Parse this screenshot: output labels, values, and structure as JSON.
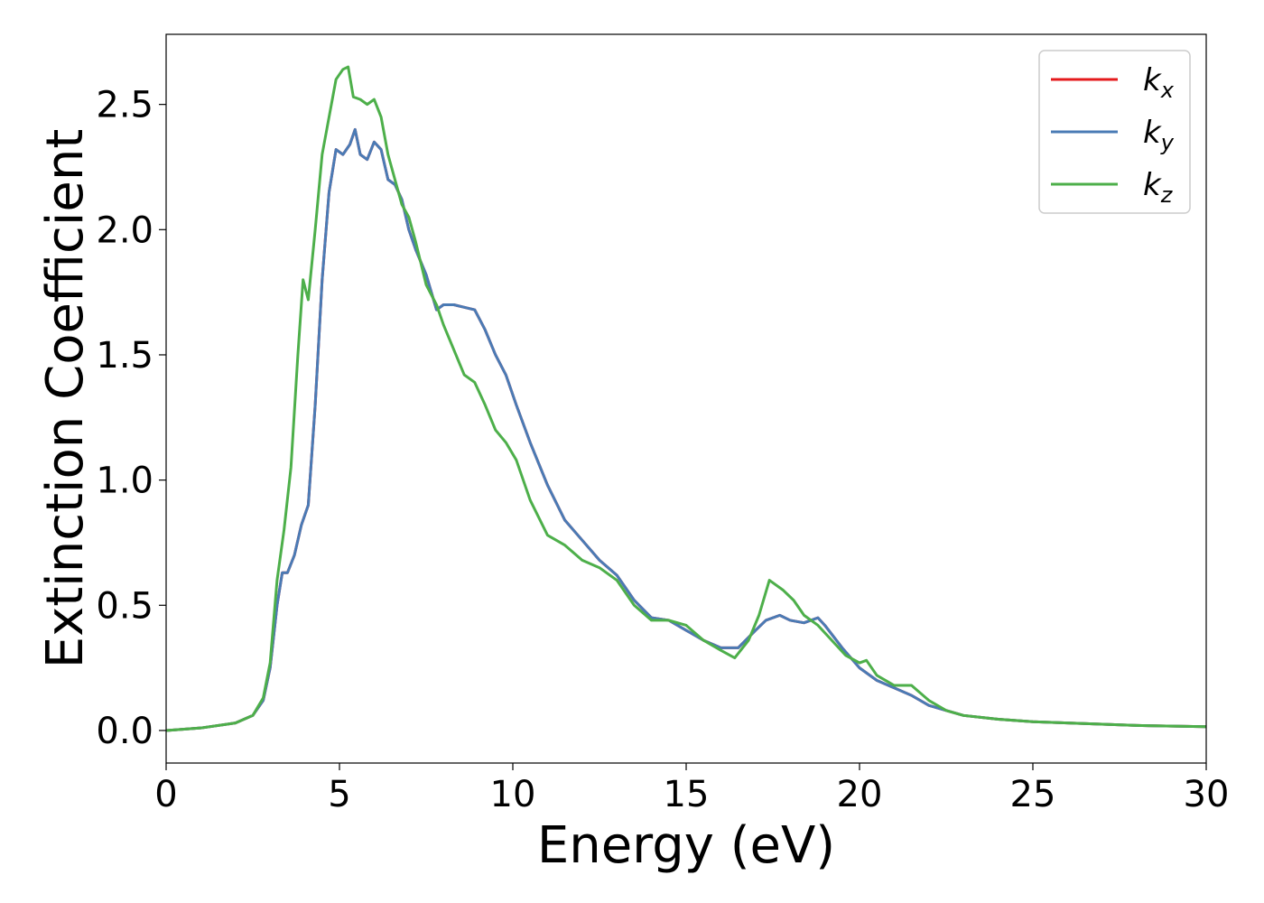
{
  "chart_data": {
    "type": "line",
    "xlabel": "Energy (eV)",
    "ylabel": "Extinction Coefficient",
    "xlim": [
      0,
      30
    ],
    "ylim": [
      -0.13,
      2.78
    ],
    "xticks": [
      0,
      5,
      10,
      15,
      20,
      25,
      30
    ],
    "yticks": [
      0.0,
      0.5,
      1.0,
      1.5,
      2.0,
      2.5
    ],
    "grid": false,
    "legend_position": "top-right",
    "series": [
      {
        "name": "k",
        "subscript": "x",
        "color": "#e41a1c",
        "x": [
          0,
          1,
          2,
          2.5,
          2.8,
          3.0,
          3.2,
          3.35,
          3.5,
          3.7,
          3.9,
          4.1,
          4.3,
          4.5,
          4.7,
          4.9,
          5.1,
          5.3,
          5.45,
          5.6,
          5.8,
          6.0,
          6.2,
          6.4,
          6.6,
          6.8,
          7.0,
          7.2,
          7.5,
          7.8,
          8.0,
          8.3,
          8.6,
          8.9,
          9.2,
          9.5,
          9.8,
          10.1,
          10.5,
          11.0,
          11.5,
          12.0,
          12.5,
          13.0,
          13.5,
          14.0,
          14.5,
          15.0,
          15.5,
          16.0,
          16.5,
          17.0,
          17.3,
          17.7,
          18.0,
          18.4,
          18.8,
          19.0,
          19.5,
          20.0,
          20.5,
          21.0,
          21.5,
          22.0,
          22.5,
          23.0,
          24.0,
          25.0,
          26.0,
          27.0,
          28.0,
          30.0
        ],
        "y": [
          0.0,
          0.01,
          0.03,
          0.06,
          0.12,
          0.25,
          0.5,
          0.63,
          0.63,
          0.7,
          0.82,
          0.9,
          1.3,
          1.8,
          2.15,
          2.32,
          2.3,
          2.34,
          2.4,
          2.3,
          2.28,
          2.35,
          2.32,
          2.2,
          2.18,
          2.12,
          2.0,
          1.92,
          1.82,
          1.68,
          1.7,
          1.7,
          1.69,
          1.68,
          1.6,
          1.5,
          1.42,
          1.3,
          1.15,
          0.98,
          0.84,
          0.76,
          0.68,
          0.62,
          0.52,
          0.45,
          0.44,
          0.4,
          0.36,
          0.33,
          0.33,
          0.4,
          0.44,
          0.46,
          0.44,
          0.43,
          0.45,
          0.42,
          0.33,
          0.25,
          0.2,
          0.17,
          0.14,
          0.1,
          0.08,
          0.06,
          0.045,
          0.035,
          0.03,
          0.025,
          0.02,
          0.015
        ]
      },
      {
        "name": "k",
        "subscript": "y",
        "color": "#4a7bb5",
        "x": [
          0,
          1,
          2,
          2.5,
          2.8,
          3.0,
          3.2,
          3.35,
          3.5,
          3.7,
          3.9,
          4.1,
          4.3,
          4.5,
          4.7,
          4.9,
          5.1,
          5.3,
          5.45,
          5.6,
          5.8,
          6.0,
          6.2,
          6.4,
          6.6,
          6.8,
          7.0,
          7.2,
          7.5,
          7.8,
          8.0,
          8.3,
          8.6,
          8.9,
          9.2,
          9.5,
          9.8,
          10.1,
          10.5,
          11.0,
          11.5,
          12.0,
          12.5,
          13.0,
          13.5,
          14.0,
          14.5,
          15.0,
          15.5,
          16.0,
          16.5,
          17.0,
          17.3,
          17.7,
          18.0,
          18.4,
          18.8,
          19.0,
          19.5,
          20.0,
          20.5,
          21.0,
          21.5,
          22.0,
          22.5,
          23.0,
          24.0,
          25.0,
          26.0,
          27.0,
          28.0,
          30.0
        ],
        "y": [
          0.0,
          0.01,
          0.03,
          0.06,
          0.12,
          0.25,
          0.5,
          0.63,
          0.63,
          0.7,
          0.82,
          0.9,
          1.3,
          1.8,
          2.15,
          2.32,
          2.3,
          2.34,
          2.4,
          2.3,
          2.28,
          2.35,
          2.32,
          2.2,
          2.18,
          2.12,
          2.0,
          1.92,
          1.82,
          1.68,
          1.7,
          1.7,
          1.69,
          1.68,
          1.6,
          1.5,
          1.42,
          1.3,
          1.15,
          0.98,
          0.84,
          0.76,
          0.68,
          0.62,
          0.52,
          0.45,
          0.44,
          0.4,
          0.36,
          0.33,
          0.33,
          0.4,
          0.44,
          0.46,
          0.44,
          0.43,
          0.45,
          0.42,
          0.33,
          0.25,
          0.2,
          0.17,
          0.14,
          0.1,
          0.08,
          0.06,
          0.045,
          0.035,
          0.03,
          0.025,
          0.02,
          0.015
        ]
      },
      {
        "name": "k",
        "subscript": "z",
        "color": "#4daf4a",
        "x": [
          0,
          1,
          2,
          2.5,
          2.8,
          3.0,
          3.2,
          3.4,
          3.6,
          3.8,
          3.95,
          4.1,
          4.3,
          4.5,
          4.7,
          4.9,
          5.1,
          5.25,
          5.4,
          5.6,
          5.8,
          6.0,
          6.2,
          6.4,
          6.6,
          6.8,
          7.0,
          7.2,
          7.5,
          7.8,
          8.0,
          8.3,
          8.6,
          8.9,
          9.2,
          9.5,
          9.8,
          10.1,
          10.5,
          11.0,
          11.5,
          12.0,
          12.5,
          13.0,
          13.5,
          14.0,
          14.5,
          15.0,
          15.5,
          16.0,
          16.4,
          16.8,
          17.1,
          17.4,
          17.8,
          18.1,
          18.4,
          18.8,
          19.2,
          19.6,
          20.0,
          20.2,
          20.5,
          21.0,
          21.5,
          22.0,
          22.5,
          23.0,
          24.0,
          25.0,
          26.0,
          27.0,
          28.0,
          30.0
        ],
        "y": [
          0.0,
          0.01,
          0.03,
          0.06,
          0.13,
          0.27,
          0.6,
          0.8,
          1.05,
          1.5,
          1.8,
          1.72,
          2.0,
          2.3,
          2.45,
          2.6,
          2.64,
          2.65,
          2.53,
          2.52,
          2.5,
          2.52,
          2.45,
          2.3,
          2.2,
          2.1,
          2.05,
          1.95,
          1.78,
          1.7,
          1.62,
          1.52,
          1.42,
          1.39,
          1.3,
          1.2,
          1.15,
          1.08,
          0.92,
          0.78,
          0.74,
          0.68,
          0.65,
          0.6,
          0.5,
          0.44,
          0.44,
          0.42,
          0.36,
          0.32,
          0.29,
          0.36,
          0.46,
          0.6,
          0.56,
          0.52,
          0.46,
          0.42,
          0.36,
          0.3,
          0.27,
          0.28,
          0.22,
          0.18,
          0.18,
          0.12,
          0.08,
          0.06,
          0.045,
          0.035,
          0.03,
          0.025,
          0.02,
          0.015
        ]
      }
    ]
  }
}
